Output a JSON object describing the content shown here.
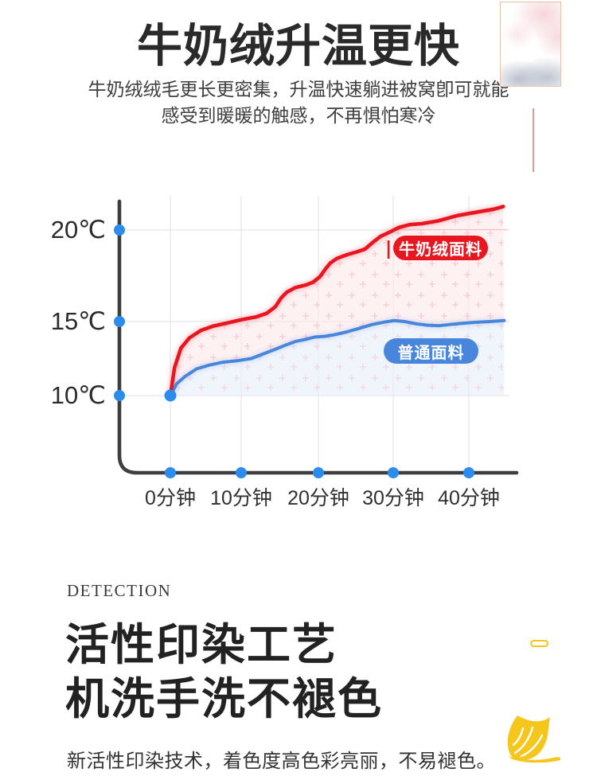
{
  "page": {
    "background": "#ffffff"
  },
  "header": {
    "title": "牛奶绒升温更快",
    "subtitle_line1": "牛奶绒绒毛更长更密集，升温快速躺进被窝卽可就能",
    "subtitle_line2": "感受到暖暖的触感，不再惧怕寒冷"
  },
  "chart_data": {
    "type": "line",
    "title": "牛奶绒升温更快",
    "x_ticks": [
      "0分钟",
      "10分钟",
      "20分钟",
      "30分钟",
      "40分钟"
    ],
    "x_values_minutes": [
      0,
      10,
      20,
      30,
      40
    ],
    "y_ticks": [
      "20℃",
      "15℃",
      "10℃"
    ],
    "y_values_celsius": [
      20,
      15,
      10
    ],
    "x_unit": "分钟",
    "y_unit": "℃",
    "grid": true,
    "legend_position": "inline-badges",
    "series": [
      {
        "name": "牛奶绒面料",
        "label": "牛奶绒面料",
        "color": "#e8161f",
        "area_color": "#fce7ea",
        "points": [
          [
            0,
            10
          ],
          [
            0.6,
            11.9
          ],
          [
            1.5,
            13.2
          ],
          [
            2.7,
            13.9
          ],
          [
            4.3,
            14.4
          ],
          [
            6.1,
            14.7
          ],
          [
            8,
            14.9
          ],
          [
            10,
            15.1
          ],
          [
            11.9,
            15.25
          ],
          [
            13.3,
            15.45
          ],
          [
            14.4,
            15.8
          ],
          [
            15.2,
            16.3
          ],
          [
            15.9,
            16.6
          ],
          [
            17,
            16.85
          ],
          [
            18.4,
            17
          ],
          [
            19.3,
            17.15
          ],
          [
            20.2,
            17.45
          ],
          [
            20.9,
            17.85
          ],
          [
            21.6,
            18.2
          ],
          [
            22.5,
            18.45
          ],
          [
            23.8,
            18.65
          ],
          [
            25.1,
            18.8
          ],
          [
            26.2,
            18.95
          ],
          [
            27.2,
            19.3
          ],
          [
            28.3,
            19.65
          ],
          [
            29.6,
            19.9
          ],
          [
            30.8,
            20.15
          ],
          [
            32.2,
            20.3
          ],
          [
            33.8,
            20.35
          ],
          [
            35.9,
            20.5
          ],
          [
            38.5,
            20.8
          ],
          [
            41.2,
            21
          ],
          [
            43.2,
            21.15
          ],
          [
            44.4,
            21.3
          ]
        ]
      },
      {
        "name": "普通面料",
        "label": "普通面料",
        "color": "#4886dc",
        "area_color": "#e9effa",
        "points": [
          [
            0,
            10
          ],
          [
            0.9,
            10.8
          ],
          [
            2.1,
            11.3
          ],
          [
            3.7,
            11.8
          ],
          [
            5.4,
            12.05
          ],
          [
            7.4,
            12.25
          ],
          [
            9.4,
            12.35
          ],
          [
            11.3,
            12.5
          ],
          [
            12.8,
            12.8
          ],
          [
            14.3,
            13.1
          ],
          [
            15.7,
            13.4
          ],
          [
            17,
            13.65
          ],
          [
            18.4,
            13.8
          ],
          [
            19.5,
            13.95
          ],
          [
            20.8,
            14
          ],
          [
            22.1,
            14.1
          ],
          [
            23.8,
            14.3
          ],
          [
            25.5,
            14.55
          ],
          [
            27.2,
            14.8
          ],
          [
            28.7,
            14.95
          ],
          [
            30.1,
            15.05
          ],
          [
            31.5,
            15
          ],
          [
            33,
            14.85
          ],
          [
            34.6,
            14.75
          ],
          [
            36.1,
            14.72
          ],
          [
            37.5,
            14.8
          ],
          [
            39.1,
            14.88
          ],
          [
            41,
            14.95
          ],
          [
            42.7,
            15
          ],
          [
            44.5,
            15.05
          ]
        ]
      }
    ],
    "colors": {
      "dot": "#2b8ced",
      "axis": "#3e3e3e",
      "grid": "#e0e0e0",
      "grid_highlight_20c": "#f5c3c6"
    }
  },
  "section2": {
    "eyebrow": "DETECTION",
    "title_line1": "活性印染工艺",
    "title_line2": "机洗手洗不褪色",
    "body": "新活性印染技术，着色度高色彩亮丽，不易褪色。"
  },
  "decor": {
    "watercolor_pink": "#f6d3d8",
    "watercolor_gray": "#b4bac7",
    "frame_border": "#e9c3a8",
    "divider_color": "#e09a90",
    "leaf_color": "#f5c71d"
  }
}
